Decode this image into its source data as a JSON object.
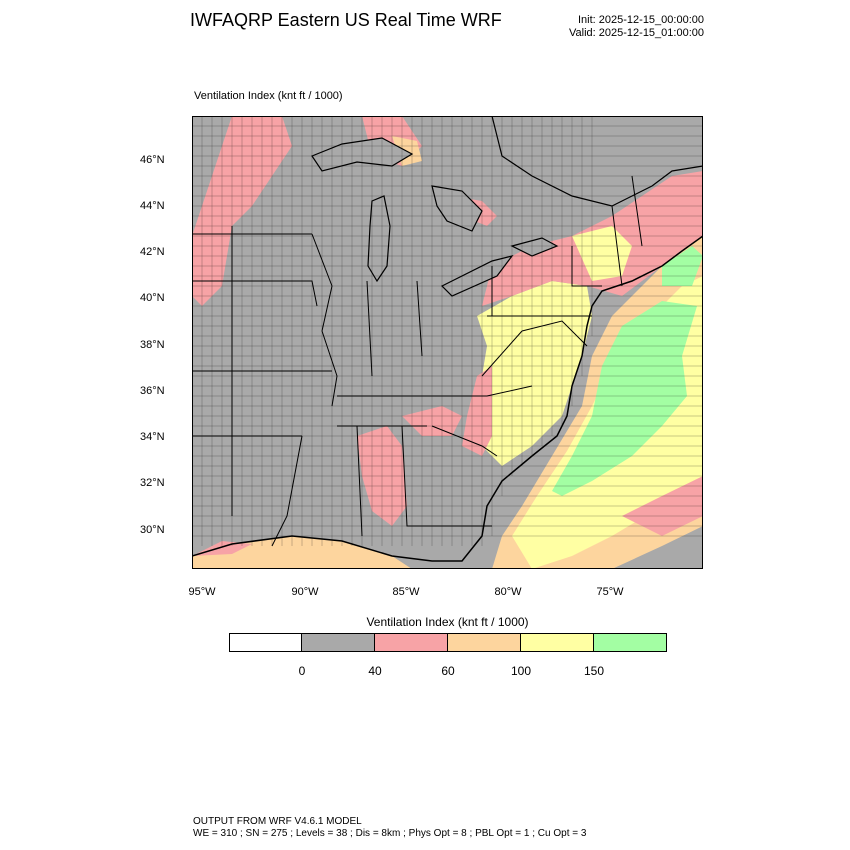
{
  "header": {
    "title": "IWFAQRP Eastern US Real Time WRF",
    "init": "Init: 2025-12-15_00:00:00",
    "valid": "Valid: 2025-12-15_01:00:00"
  },
  "map": {
    "label": "Ventilation Index   (knt ft / 1000)",
    "lat_labels": [
      "46°N",
      "44°N",
      "42°N",
      "40°N",
      "38°N",
      "36°N",
      "34°N",
      "32°N",
      "30°N"
    ],
    "lon_labels": [
      "95°W",
      "90°W",
      "85°W",
      "80°W",
      "75°W"
    ],
    "colors": {
      "gray": "#a9a9a9",
      "pink": "#f7a3a6",
      "orange": "#fdd59e",
      "yellow": "#ffffa3",
      "green": "#a3fea3",
      "boundary": "#000000"
    }
  },
  "colorbar": {
    "title": "Ventilation Index  (knt ft / 1000)",
    "ticks": [
      "0",
      "40",
      "60",
      "100",
      "150"
    ],
    "segment_colors": [
      "#ffffff",
      "#a9a9a9",
      "#f7a3a6",
      "#fdd59e",
      "#ffffa3",
      "#a3fea3"
    ]
  },
  "footer": {
    "line1": "OUTPUT FROM WRF V4.6.1 MODEL",
    "line2": "WE = 310 ; SN = 275 ; Levels = 38 ; Dis = 8km ; Phys Opt = 8 ; PBL Opt = 1 ; Cu Opt = 3"
  }
}
